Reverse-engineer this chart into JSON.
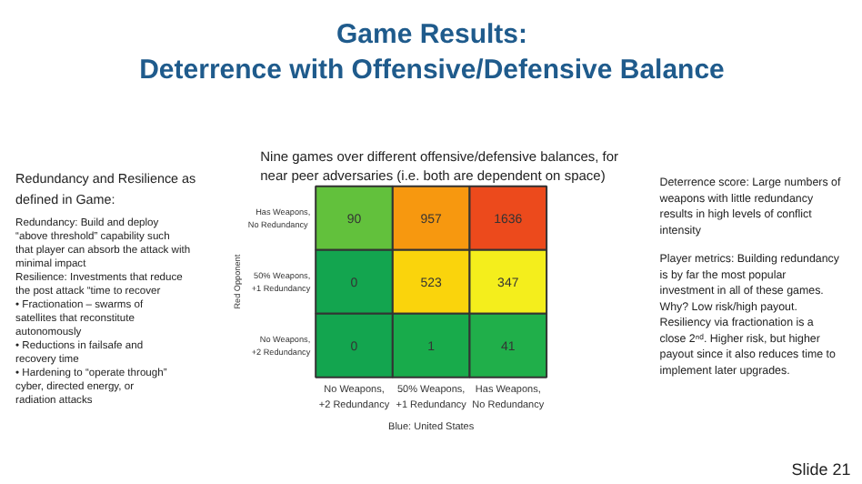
{
  "chart_data": {
    "type": "heatmap",
    "title": "Game Results:\nDeterrence with Offensive/Defensive Balance",
    "subtitle": "Nine games over different offensive/defensive balances, for\nnear peer adversaries (i.e. both are dependent on space)",
    "xlabel": "Blue: United States",
    "ylabel": "Red Opponent",
    "categories": [
      "No Weapons,\n+2 Redundancy",
      "50% Weapons,\n+1 Redundancy",
      "Has Weapons,\nNo Redundancy"
    ],
    "y_categories": [
      "Has Weapons,\nNo  Redundancy",
      "50% Weapons,\n+1 Redundancy",
      "No Weapons,\n+2 Redundancy"
    ],
    "cells": [
      [
        90,
        957,
        1636
      ],
      [
        0,
        523,
        347
      ],
      [
        0,
        1,
        41
      ]
    ],
    "colors": [
      [
        "#62c13c",
        "#f7980f",
        "#ec4a1c"
      ],
      [
        "#13a54f",
        "#fad40c",
        "#f4ee1c"
      ],
      [
        "#13a54f",
        "#18ab4b",
        "#20af4a"
      ]
    ],
    "data_labels": true,
    "annotations": [
      "Redundancy and Resilience as\ndefined in Game:",
      "Redundancy: Build and deploy\n“above threshold” capability such\nthat player can absorb the attack with\nminimal impact\nResilience: Investments that reduce\nthe post attack “time to recover\n•      Fractionation – swarms of\n        satellites that reconstitute\n        autonomously\n•      Reductions in failsafe and\n        recovery time\n•      Hardening to “operate through”\n        cyber, directed energy, or\n        radiation attacks",
      "Deterrence score: Large numbers of\nweapons with little redundancy\nresults in high levels of conflict\nintensity",
      "Player metrics: Building redundancy\nis by far the most popular\ninvestment in all of these games.\nWhy? Low risk/high payout.\nResiliency via fractionation is a\nclose 2ⁿᵈ. Higher risk, but higher\npayout since it also reduces time to\nimplement later upgrades.",
      "Slide 21"
    ]
  }
}
